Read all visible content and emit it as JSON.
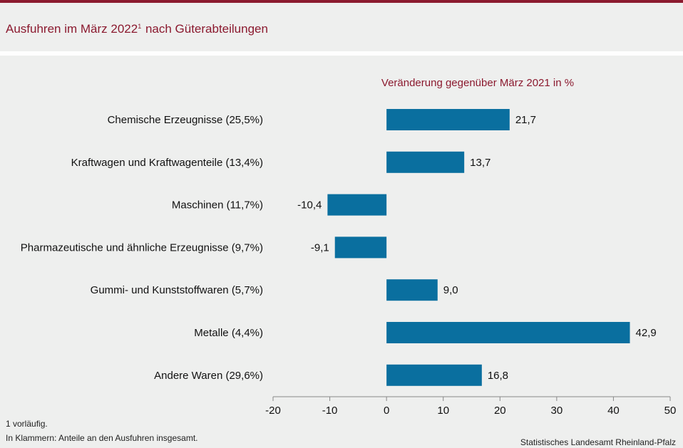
{
  "title_main": "Ausfuhren im März 2022",
  "title_sup": "1",
  "title_rest": " nach Güterabteilungen",
  "chart_data": {
    "type": "bar",
    "orientation": "horizontal",
    "subtitle": "Veränderung gegenüber März 2021 in %",
    "categories": [
      "Chemische Erzeugnisse (25,5%)",
      "Kraftwagen und Kraftwagenteile (13,4%)",
      "Maschinen (11,7%)",
      "Pharmazeutische und ähnliche Erzeugnisse (9,7%)",
      "Gummi- und Kunststoffwaren (5,7%)",
      "Metalle (4,4%)",
      "Andere Waren (29,6%)"
    ],
    "values": [
      21.7,
      13.7,
      -10.4,
      -9.1,
      9.0,
      42.9,
      16.8
    ],
    "value_labels": [
      "21,7",
      "13,7",
      "-10,4",
      "-9,1",
      "9,0",
      "42,9",
      "16,8"
    ],
    "xlim": [
      -20,
      50
    ],
    "xticks": [
      -20,
      -10,
      0,
      10,
      20,
      30,
      40,
      50
    ],
    "bar_color": "#0a6f9f",
    "xlabel": "",
    "ylabel": ""
  },
  "footnotes": {
    "note1": "1 vorläufig.",
    "note2": "In Klammern: Anteile an den Ausfuhren insgesamt."
  },
  "source": "Statistisches Landesamt Rheinland-Pfalz"
}
